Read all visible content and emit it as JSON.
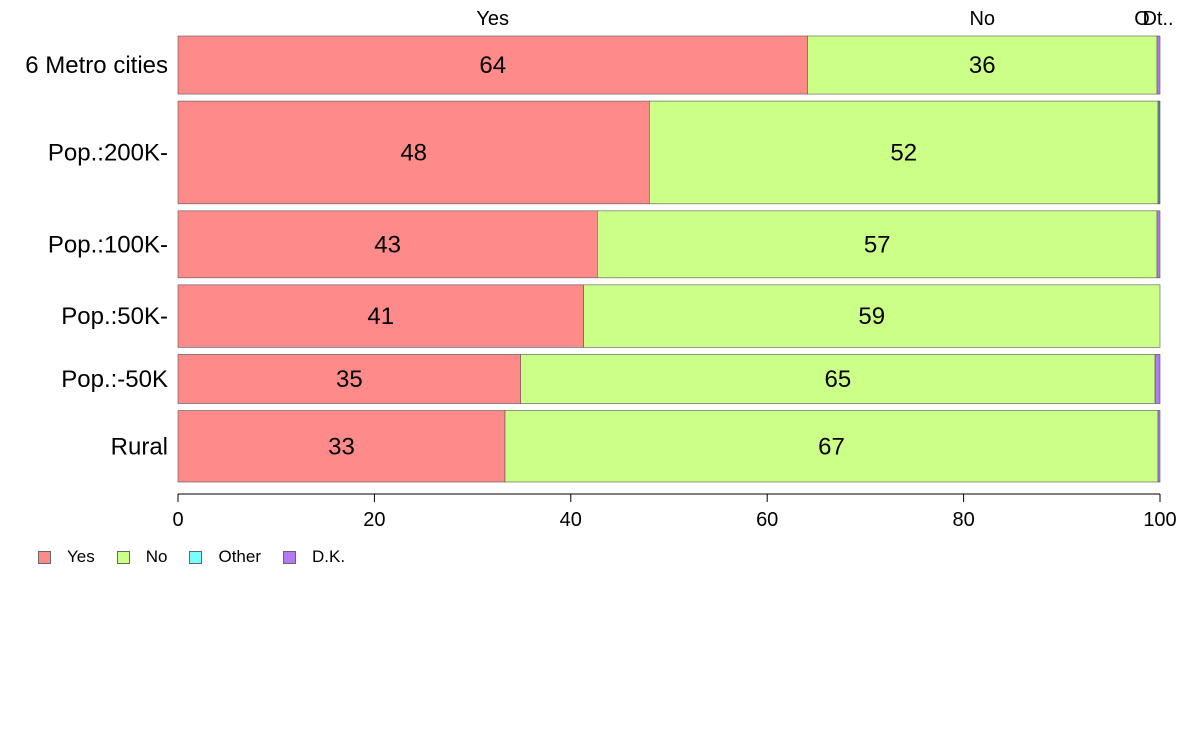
{
  "chart_data": {
    "type": "bar",
    "orientation": "horizontal",
    "stacked": true,
    "categories": [
      "6 Metro cities",
      "Pop.:200K-",
      "Pop.:100K-",
      "Pop.:50K-",
      "Pop.:-50K",
      "Rural"
    ],
    "category_share": [
      0.13,
      0.23,
      0.15,
      0.14,
      0.11,
      0.16
    ],
    "series": [
      {
        "name": "Yes",
        "color": "#ff8a8a",
        "values": [
          64.1,
          48.0,
          42.7,
          41.3,
          34.9,
          33.3
        ]
      },
      {
        "name": "No",
        "color": "#ccff88",
        "values": [
          35.6,
          51.8,
          57.0,
          58.7,
          64.6,
          66.5
        ]
      },
      {
        "name": "Other",
        "color": "#77ffff",
        "values": [
          0.0,
          0.1,
          0.0,
          0.0,
          0.0,
          0.0
        ]
      },
      {
        "name": "D.K.",
        "color": "#b07cf0",
        "values": [
          0.3,
          0.1,
          0.3,
          0.0,
          0.5,
          0.2
        ]
      }
    ],
    "data_labels": [
      [
        "64",
        "36"
      ],
      [
        "48",
        "52"
      ],
      [
        "43",
        "57"
      ],
      [
        "41",
        "59"
      ],
      [
        "35",
        "65"
      ],
      [
        "33",
        "67"
      ]
    ],
    "top_labels": [
      "Yes",
      "No",
      "O",
      "Dt.."
    ],
    "xlim": [
      0,
      100
    ],
    "xticks": [
      "0",
      "20",
      "40",
      "60",
      "80",
      "100"
    ],
    "title": "",
    "xlabel": "",
    "ylabel": "",
    "grid": false,
    "legend_position": "bottom-left"
  }
}
